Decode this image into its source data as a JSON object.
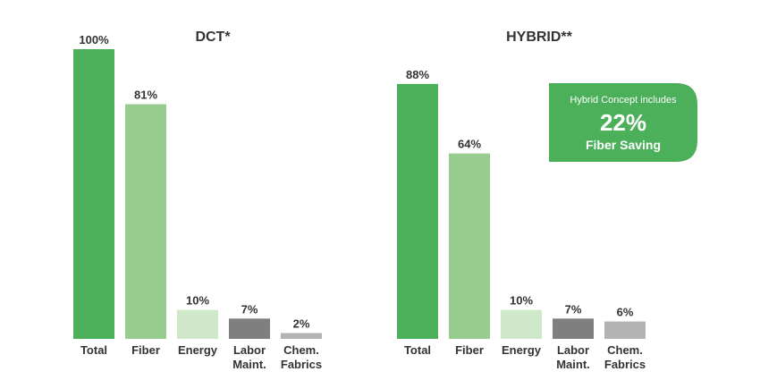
{
  "chart_data": [
    {
      "type": "bar",
      "title": "DCT*",
      "categories": [
        "Total",
        "Fiber",
        "Energy",
        "Labor Maint.",
        "Chem. Fabrics"
      ],
      "category_lines": [
        [
          "Total"
        ],
        [
          "Fiber"
        ],
        [
          "Energy"
        ],
        [
          "Labor",
          "Maint."
        ],
        [
          "Chem.",
          "Fabrics"
        ]
      ],
      "values": [
        100,
        81,
        10,
        7,
        2
      ],
      "value_labels": [
        "100%",
        "81%",
        "10%",
        "7%",
        "2%"
      ],
      "colors": [
        "#4caf5a",
        "#98cc8e",
        "#cfe8c9",
        "#7f7f7f",
        "#b3b3b3"
      ],
      "ylim": [
        0,
        100
      ],
      "grid": false
    },
    {
      "type": "bar",
      "title": "HYBRID**",
      "categories": [
        "Total",
        "Fiber",
        "Energy",
        "Labor Maint.",
        "Chem. Fabrics"
      ],
      "category_lines": [
        [
          "Total"
        ],
        [
          "Fiber"
        ],
        [
          "Energy"
        ],
        [
          "Labor",
          "Maint."
        ],
        [
          "Chem.",
          "Fabrics"
        ]
      ],
      "values": [
        88,
        64,
        10,
        7,
        6
      ],
      "value_labels": [
        "88%",
        "64%",
        "10%",
        "7%",
        "6%"
      ],
      "colors": [
        "#4caf5a",
        "#98cc8e",
        "#cfe8c9",
        "#7f7f7f",
        "#b3b3b3"
      ],
      "ylim": [
        0,
        100
      ],
      "grid": false
    }
  ],
  "callout": {
    "line1": "Hybrid Concept includes",
    "line2": "22%",
    "line3": "Fiber Saving",
    "color": "#4caf5a"
  }
}
